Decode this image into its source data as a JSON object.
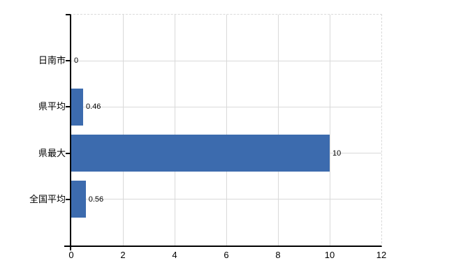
{
  "chart_data": {
    "type": "bar",
    "orientation": "horizontal",
    "title": "",
    "xlabel": "",
    "ylabel": "",
    "categories": [
      "日南市",
      "県平均",
      "県最大",
      "全国平均"
    ],
    "values": [
      0,
      0.46,
      10,
      0.56
    ],
    "value_labels": [
      "0",
      "0.46",
      "10",
      "0.56"
    ],
    "xlim": [
      0,
      12
    ],
    "xticks": [
      0,
      2,
      4,
      6,
      8,
      10,
      12
    ],
    "xtick_labels": [
      "0",
      "2",
      "4",
      "6",
      "8",
      "10",
      "12"
    ],
    "grid": true,
    "legend": false,
    "colors": {
      "bar": "#3c6bae",
      "grid": "#d9d9d9",
      "axis": "#000000",
      "text": "#000000",
      "background": "#ffffff"
    }
  }
}
